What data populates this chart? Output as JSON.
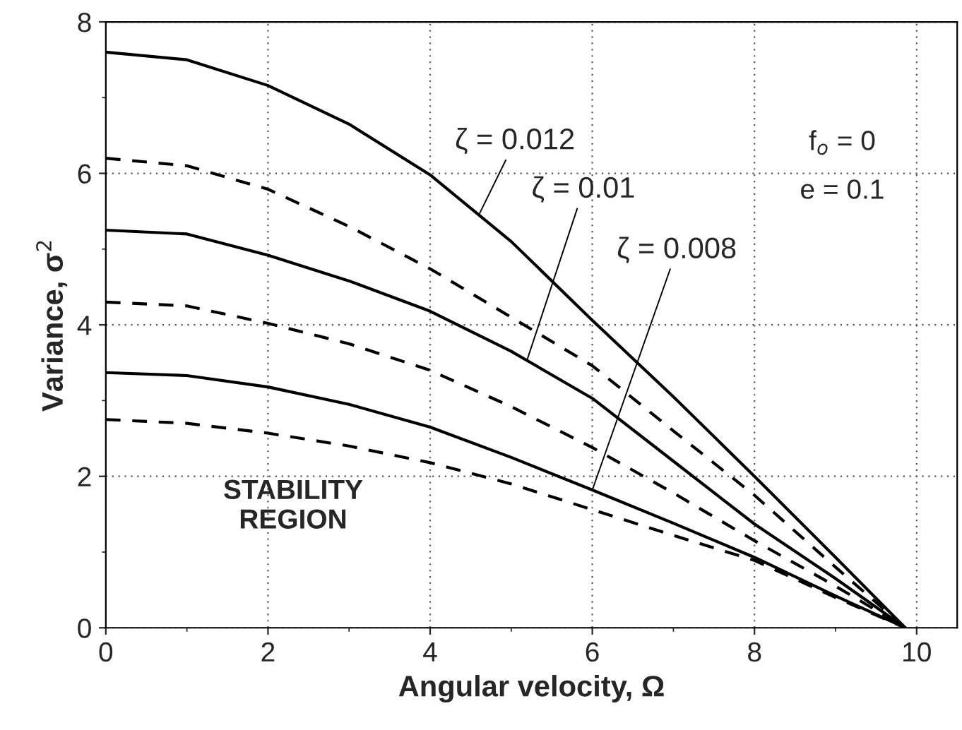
{
  "chart_data": {
    "type": "line",
    "xlabel": "Angular velocity, Ω",
    "ylabel": "Variance, σ$^{2}$",
    "xlim": [
      0,
      10.5
    ],
    "ylim": [
      0,
      8
    ],
    "xticks": [
      0,
      2,
      4,
      6,
      8,
      10
    ],
    "yticks": [
      0,
      2,
      4,
      6,
      8
    ],
    "grid": true,
    "legend": false,
    "marker": "none",
    "series": [
      {
        "color": "#000000",
        "line_style": "solid",
        "x": [
          0,
          1,
          2,
          3,
          4,
          5,
          6,
          7,
          8,
          9,
          9.86
        ],
        "values": [
          7.6,
          7.5,
          7.16,
          6.65,
          5.98,
          5.1,
          4.06,
          3.05,
          2.0,
          0.93,
          0
        ]
      },
      {
        "color": "#000000",
        "line_style": "dashed",
        "x": [
          0,
          1,
          2,
          3,
          4,
          5,
          6,
          7,
          8,
          9,
          9.86
        ],
        "values": [
          6.2,
          6.1,
          5.79,
          5.3,
          4.74,
          4.1,
          3.46,
          2.6,
          1.75,
          0.8,
          0
        ]
      },
      {
        "color": "#000000",
        "line_style": "solid",
        "x": [
          0,
          1,
          2,
          3,
          4,
          5,
          6,
          7,
          8,
          9,
          9.86
        ],
        "values": [
          5.25,
          5.2,
          4.92,
          4.58,
          4.18,
          3.65,
          3.03,
          2.2,
          1.37,
          0.65,
          0
        ]
      },
      {
        "color": "#000000",
        "line_style": "dashed",
        "x": [
          0,
          1,
          2,
          3,
          4,
          5,
          6,
          7,
          8,
          9,
          9.86
        ],
        "values": [
          4.3,
          4.25,
          4.02,
          3.75,
          3.4,
          2.92,
          2.38,
          1.78,
          1.15,
          0.55,
          0
        ]
      },
      {
        "color": "#000000",
        "line_style": "solid",
        "x": [
          0,
          1,
          2,
          3,
          4,
          5,
          6,
          7,
          8,
          9,
          9.86
        ],
        "values": [
          3.37,
          3.33,
          3.18,
          2.95,
          2.65,
          2.25,
          1.82,
          1.38,
          0.93,
          0.42,
          0
        ]
      },
      {
        "color": "#000000",
        "line_style": "dashed",
        "x": [
          0,
          1,
          2,
          3,
          4,
          5,
          6,
          7,
          8,
          9,
          9.86
        ],
        "values": [
          2.75,
          2.7,
          2.57,
          2.4,
          2.18,
          1.9,
          1.56,
          1.22,
          0.89,
          0.4,
          0
        ]
      }
    ],
    "annotations": [
      {
        "text": "ζ = 0.012",
        "x": 4.6,
        "y": 5.45
      },
      {
        "text": "ζ = 0.01",
        "x": 5.2,
        "y": 3.55
      },
      {
        "text": "ζ = 0.008",
        "x": 6,
        "y": 1.82
      },
      "f$_{o}$ = 0",
      "e = 0.1",
      "STABILITY\nREGION"
    ]
  }
}
